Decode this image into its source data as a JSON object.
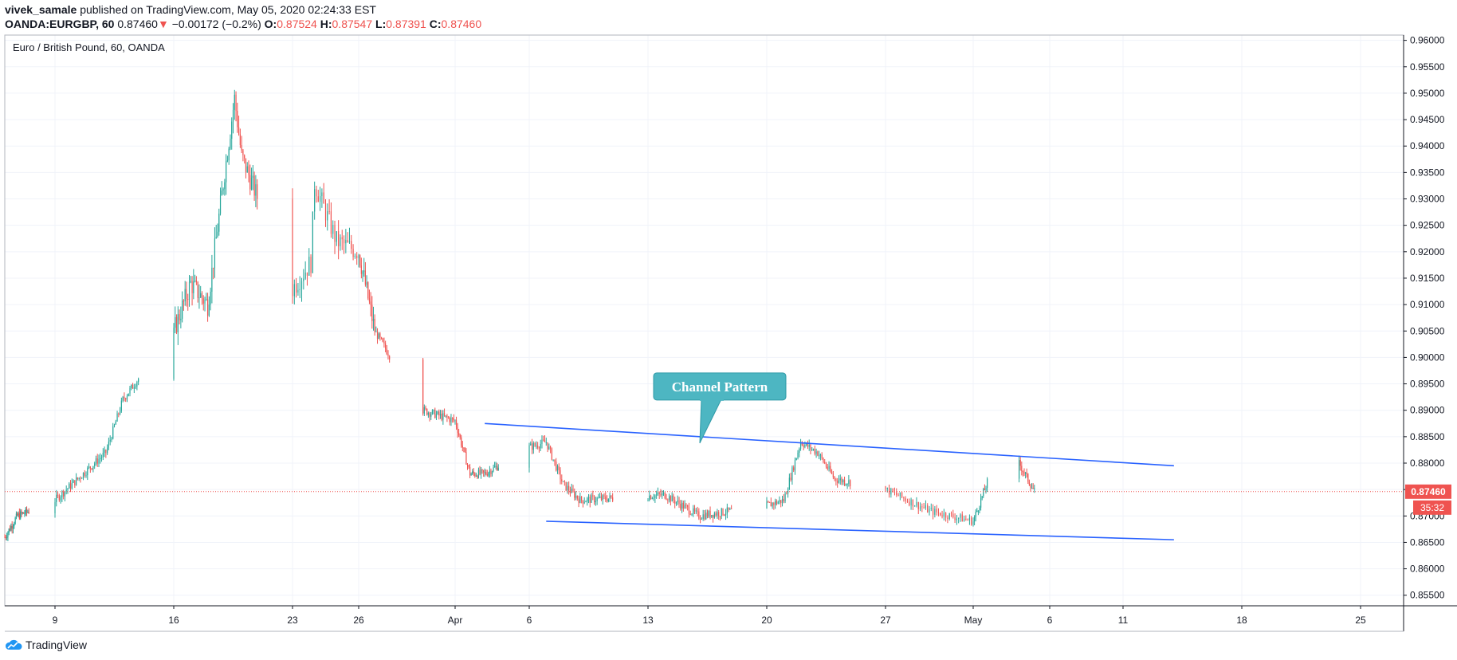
{
  "header": {
    "author": "vivek_samale",
    "published_text": "published on TradingView.com, May 05, 2020 02:24:33 EST",
    "symbol": "OANDA:EURGBP, 60",
    "price": "0.87460",
    "arrow": "▼",
    "change": "−0.00172 (−0.2%)",
    "o_label": "O:",
    "o_value": "0.87524",
    "h_label": "H:",
    "h_value": "0.87547",
    "l_label": "L:",
    "l_value": "0.87391",
    "c_label": "C:",
    "c_value": "0.87460"
  },
  "brand": {
    "name": "TradingView"
  },
  "colors": {
    "up": "#26a69a",
    "down": "#ef5350",
    "candle_body_up": "#26a69a",
    "candle_body_down": "#ef5350",
    "trendline": "#2962ff",
    "callout_fill": "#4db6c2",
    "callout_border": "#2f9aa7",
    "grid": "#f0f3fa",
    "price_line": "#ef5350"
  },
  "chart_data": {
    "type": "candlestick",
    "title": "Euro / British Pound, 60, OANDA",
    "interval_minutes": 60,
    "ylim": [
      0.853,
      0.961
    ],
    "y_ticks": [
      "0.96000",
      "0.95500",
      "0.95000",
      "0.94500",
      "0.94000",
      "0.93500",
      "0.93000",
      "0.92500",
      "0.92000",
      "0.91500",
      "0.91000",
      "0.90500",
      "0.90000",
      "0.89500",
      "0.89000",
      "0.88500",
      "0.88000",
      "0.87500",
      "0.87000",
      "0.86500",
      "0.86000",
      "0.85500"
    ],
    "x_range": [
      "2020-03-05",
      "2020-03-29"
    ],
    "x_ticks": [
      {
        "label": "9",
        "date": "2020-03-09"
      },
      {
        "label": "16",
        "date": "2020-03-16"
      },
      {
        "label": "23",
        "date": "2020-03-23"
      },
      {
        "label": "26",
        "date": "2020-03-26"
      },
      {
        "label": "Apr",
        "date": "2020-04-01"
      },
      {
        "label": "6",
        "date": "2020-04-06"
      },
      {
        "label": "13",
        "date": "2020-04-13"
      },
      {
        "label": "20",
        "date": "2020-04-20"
      },
      {
        "label": "27",
        "date": "2020-04-27"
      },
      {
        "label": "May",
        "date": "2020-05-01"
      },
      {
        "label": "6",
        "date": "2020-05-06"
      },
      {
        "label": "11",
        "date": "2020-05-11"
      },
      {
        "label": "18",
        "date": "2020-05-18"
      },
      {
        "label": "25",
        "date": "2020-05-25"
      }
    ],
    "close_path": [
      {
        "t": "2020-03-05",
        "v": 0.866
      },
      {
        "t": "2020-03-06",
        "v": 0.87
      },
      {
        "t": "2020-03-09",
        "v": 0.873
      },
      {
        "t": "2020-03-10",
        "v": 0.876
      },
      {
        "t": "2020-03-11",
        "v": 0.879
      },
      {
        "t": "2020-03-12",
        "v": 0.882
      },
      {
        "t": "2020-03-13",
        "v": 0.892
      },
      {
        "t": "2020-03-16",
        "v": 0.905
      },
      {
        "t": "2020-03-17",
        "v": 0.914
      },
      {
        "t": "2020-03-18",
        "v": 0.91
      },
      {
        "t": "2020-03-19",
        "v": 0.935
      },
      {
        "t": "2020-03-19T14",
        "v": 0.949
      },
      {
        "t": "2020-03-20",
        "v": 0.938
      },
      {
        "t": "2020-03-23",
        "v": 0.913
      },
      {
        "t": "2020-03-23T20",
        "v": 0.918
      },
      {
        "t": "2020-03-24",
        "v": 0.933
      },
      {
        "t": "2020-03-25",
        "v": 0.922
      },
      {
        "t": "2020-03-26",
        "v": 0.92
      },
      {
        "t": "2020-03-27",
        "v": 0.905
      },
      {
        "t": "2020-03-30",
        "v": 0.89
      },
      {
        "t": "2020-04-01",
        "v": 0.888
      },
      {
        "t": "2020-04-02",
        "v": 0.878
      },
      {
        "t": "2020-04-03",
        "v": 0.878
      },
      {
        "t": "2020-04-06",
        "v": 0.883
      },
      {
        "t": "2020-04-07",
        "v": 0.884
      },
      {
        "t": "2020-04-08",
        "v": 0.876
      },
      {
        "t": "2020-04-09",
        "v": 0.873
      },
      {
        "t": "2020-04-14",
        "v": 0.874
      },
      {
        "t": "2020-04-16",
        "v": 0.87
      },
      {
        "t": "2020-04-20",
        "v": 0.872
      },
      {
        "t": "2020-04-21",
        "v": 0.873
      },
      {
        "t": "2020-04-22",
        "v": 0.884
      },
      {
        "t": "2020-04-23",
        "v": 0.882
      },
      {
        "t": "2020-04-24",
        "v": 0.877
      },
      {
        "t": "2020-04-27",
        "v": 0.875
      },
      {
        "t": "2020-04-29",
        "v": 0.871
      },
      {
        "t": "2020-04-30",
        "v": 0.87
      },
      {
        "t": "2020-05-01",
        "v": 0.869
      },
      {
        "t": "2020-05-02",
        "v": 0.877
      },
      {
        "t": "2020-05-04",
        "v": 0.88
      },
      {
        "t": "2020-05-05",
        "v": 0.8746
      }
    ],
    "last_price": "0.87460",
    "countdown": "35:32",
    "annotations": [
      {
        "type": "trendline",
        "name": "channel-upper",
        "from": {
          "t": "2020-04-03",
          "v": 0.8875
        },
        "to": {
          "t": "2020-05-14",
          "v": 0.8795
        }
      },
      {
        "type": "trendline",
        "name": "channel-lower",
        "from": {
          "t": "2020-04-07",
          "v": 0.869
        },
        "to": {
          "t": "2020-05-14",
          "v": 0.8655
        }
      },
      {
        "type": "callout",
        "text": "Channel Pattern",
        "anchor": {
          "t": "2020-04-13",
          "v": 0.885
        }
      }
    ]
  }
}
